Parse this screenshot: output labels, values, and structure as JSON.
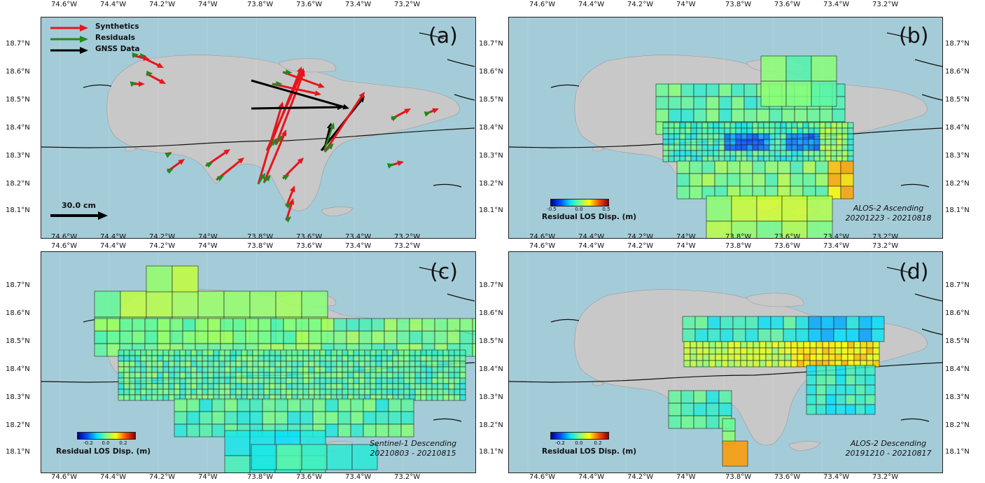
{
  "axes": {
    "lon_labels": [
      "74.6°W",
      "74.4°W",
      "74.2°W",
      "74°W",
      "73.8°W",
      "73.6°W",
      "73.4°W",
      "73.2°W"
    ],
    "lat_labels": [
      "18.7°N",
      "18.6°N",
      "18.5°N",
      "18.4°N",
      "18.3°N",
      "18.2°N",
      "18.1°N"
    ]
  },
  "panel_a": {
    "label": "(a)",
    "legend": {
      "synthetics": "Synthetics",
      "residuals": "Residuals",
      "gnss": "GNSS Data"
    },
    "scale_label": "30.0 cm",
    "colors": {
      "synthetics": "#e8141b",
      "residuals": "#1f8a1f",
      "gnss": "#000000"
    }
  },
  "panel_b": {
    "label": "(b)",
    "caption_line1": "ALOS-2 Ascending",
    "caption_line2": "20201223 - 20210818",
    "cbar_title": "Residual LOS Disp. (m)",
    "cbar_ticks": [
      "-0.5",
      "0.0",
      "0.5"
    ]
  },
  "panel_c": {
    "label": "(c)",
    "caption_line1": "Sentinel-1 Descending",
    "caption_line2": "20210803 - 20210815",
    "cbar_title": "Residual LOS Disp. (m)",
    "cbar_ticks": [
      "-0.2",
      "0.0",
      "0.2"
    ]
  },
  "panel_d": {
    "label": "(d)",
    "caption_line1": "ALOS-2 Descending",
    "caption_line2": "20191210 - 20210817",
    "cbar_title": "Residual LOS Disp. (m)",
    "cbar_ticks": [
      "-0.2",
      "0.0",
      "0.2"
    ]
  },
  "colors": {
    "sea": "#a4cbd8",
    "land": "#c8c8c8"
  }
}
